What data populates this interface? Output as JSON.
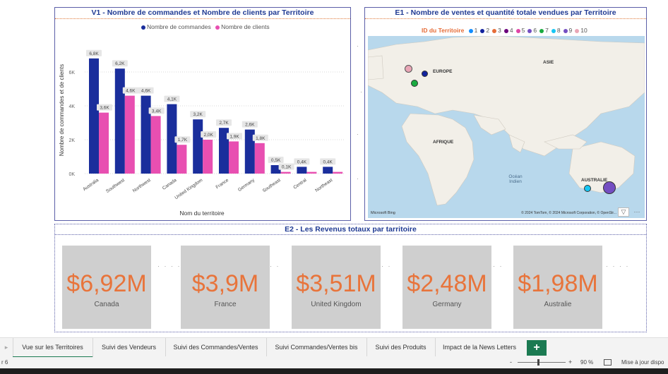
{
  "v1": {
    "title": "V1 - Nombre de commandes et Nombre de clients par Territoire",
    "legend": [
      "Nombre de commandes",
      "Nombre de clients"
    ],
    "xlabel": "Nom du territoire",
    "ylabel": "Nombre de commandes et de clients"
  },
  "chart_data": {
    "type": "bar",
    "categories": [
      "Australia",
      "Southwest",
      "Northwest",
      "Canada",
      "United Kingdom",
      "France",
      "Germany",
      "Southeast",
      "Central",
      "Northeast"
    ],
    "series": [
      {
        "name": "Nombre de commandes",
        "values": [
          6.8,
          6.2,
          4.6,
          4.1,
          3.2,
          2.7,
          2.6,
          0.5,
          0.4,
          0.4
        ],
        "labels": [
          "6,8K",
          "6,2K",
          "4,6K",
          "4,1K",
          "3,2K",
          "2,7K",
          "2,6K",
          "0,5K",
          "0,4K",
          "0,4K"
        ],
        "color": "#1a2e9c"
      },
      {
        "name": "Nombre de clients",
        "values": [
          3.6,
          4.6,
          3.4,
          1.7,
          2.0,
          1.9,
          1.8,
          0.1,
          0.1,
          0.1
        ],
        "labels": [
          "3,6K",
          "4,6K",
          "3,4K",
          "1,7K",
          "2,0K",
          "1,9K",
          "1,8K",
          "0,1K",
          "",
          ""
        ],
        "color": "#e84fb1"
      }
    ],
    "yticks": [
      "6K",
      "4K",
      "2K",
      "0K"
    ],
    "ylim": [
      0,
      7.5
    ],
    "xlabel": "Nom du territoire",
    "ylabel": "Nombre de commandes et de clients",
    "legend_position": "top-center",
    "grid": true
  },
  "e1": {
    "title": "E1 - Nombre de ventes et quantité totale vendues par Territoire",
    "legend_title": "ID du Territoire",
    "legend_items": [
      {
        "id": "1",
        "color": "#118dff"
      },
      {
        "id": "2",
        "color": "#12239e"
      },
      {
        "id": "3",
        "color": "#e66c37"
      },
      {
        "id": "4",
        "color": "#6b007b"
      },
      {
        "id": "5",
        "color": "#e044a7"
      },
      {
        "id": "6",
        "color": "#744ec2"
      },
      {
        "id": "7",
        "color": "#1aab40"
      },
      {
        "id": "8",
        "color": "#15c6f4"
      },
      {
        "id": "9",
        "color": "#744ec2"
      },
      {
        "id": "10",
        "color": "#e9a6b6"
      }
    ],
    "map_labels": {
      "europe": "EUROPE",
      "asia": "ASIE",
      "africa": "AFRIQUE",
      "ocean": "Océan Indien",
      "australia": "AUSTRALIE"
    },
    "copyright": "© 2024 TomTom, © 2024 Microsoft Corporation, © OpenStr...",
    "bing": "Microsoft Bing"
  },
  "e2": {
    "title": "E2 - Les Revenus totaux par tarritoire",
    "kpis": [
      {
        "value": "$6,92M",
        "label": "Canada"
      },
      {
        "value": "$3,9M",
        "label": "France"
      },
      {
        "value": "$3,51M",
        "label": "United Kingdom"
      },
      {
        "value": "$2,48M",
        "label": "Germany"
      },
      {
        "value": "$1,98M",
        "label": "Australie"
      }
    ]
  },
  "tabs": [
    "Vue sur les Territoires",
    "Suivi des Vendeurs",
    "Suivi des Commandes/Ventes",
    "Suivi Commandes/Ventes bis",
    "Suivi des Produits",
    "Impact de la News Letters"
  ],
  "add_tab": "+",
  "status": {
    "page": "r 6",
    "zoom": "90 %",
    "update": "Mise à jour dispo"
  }
}
